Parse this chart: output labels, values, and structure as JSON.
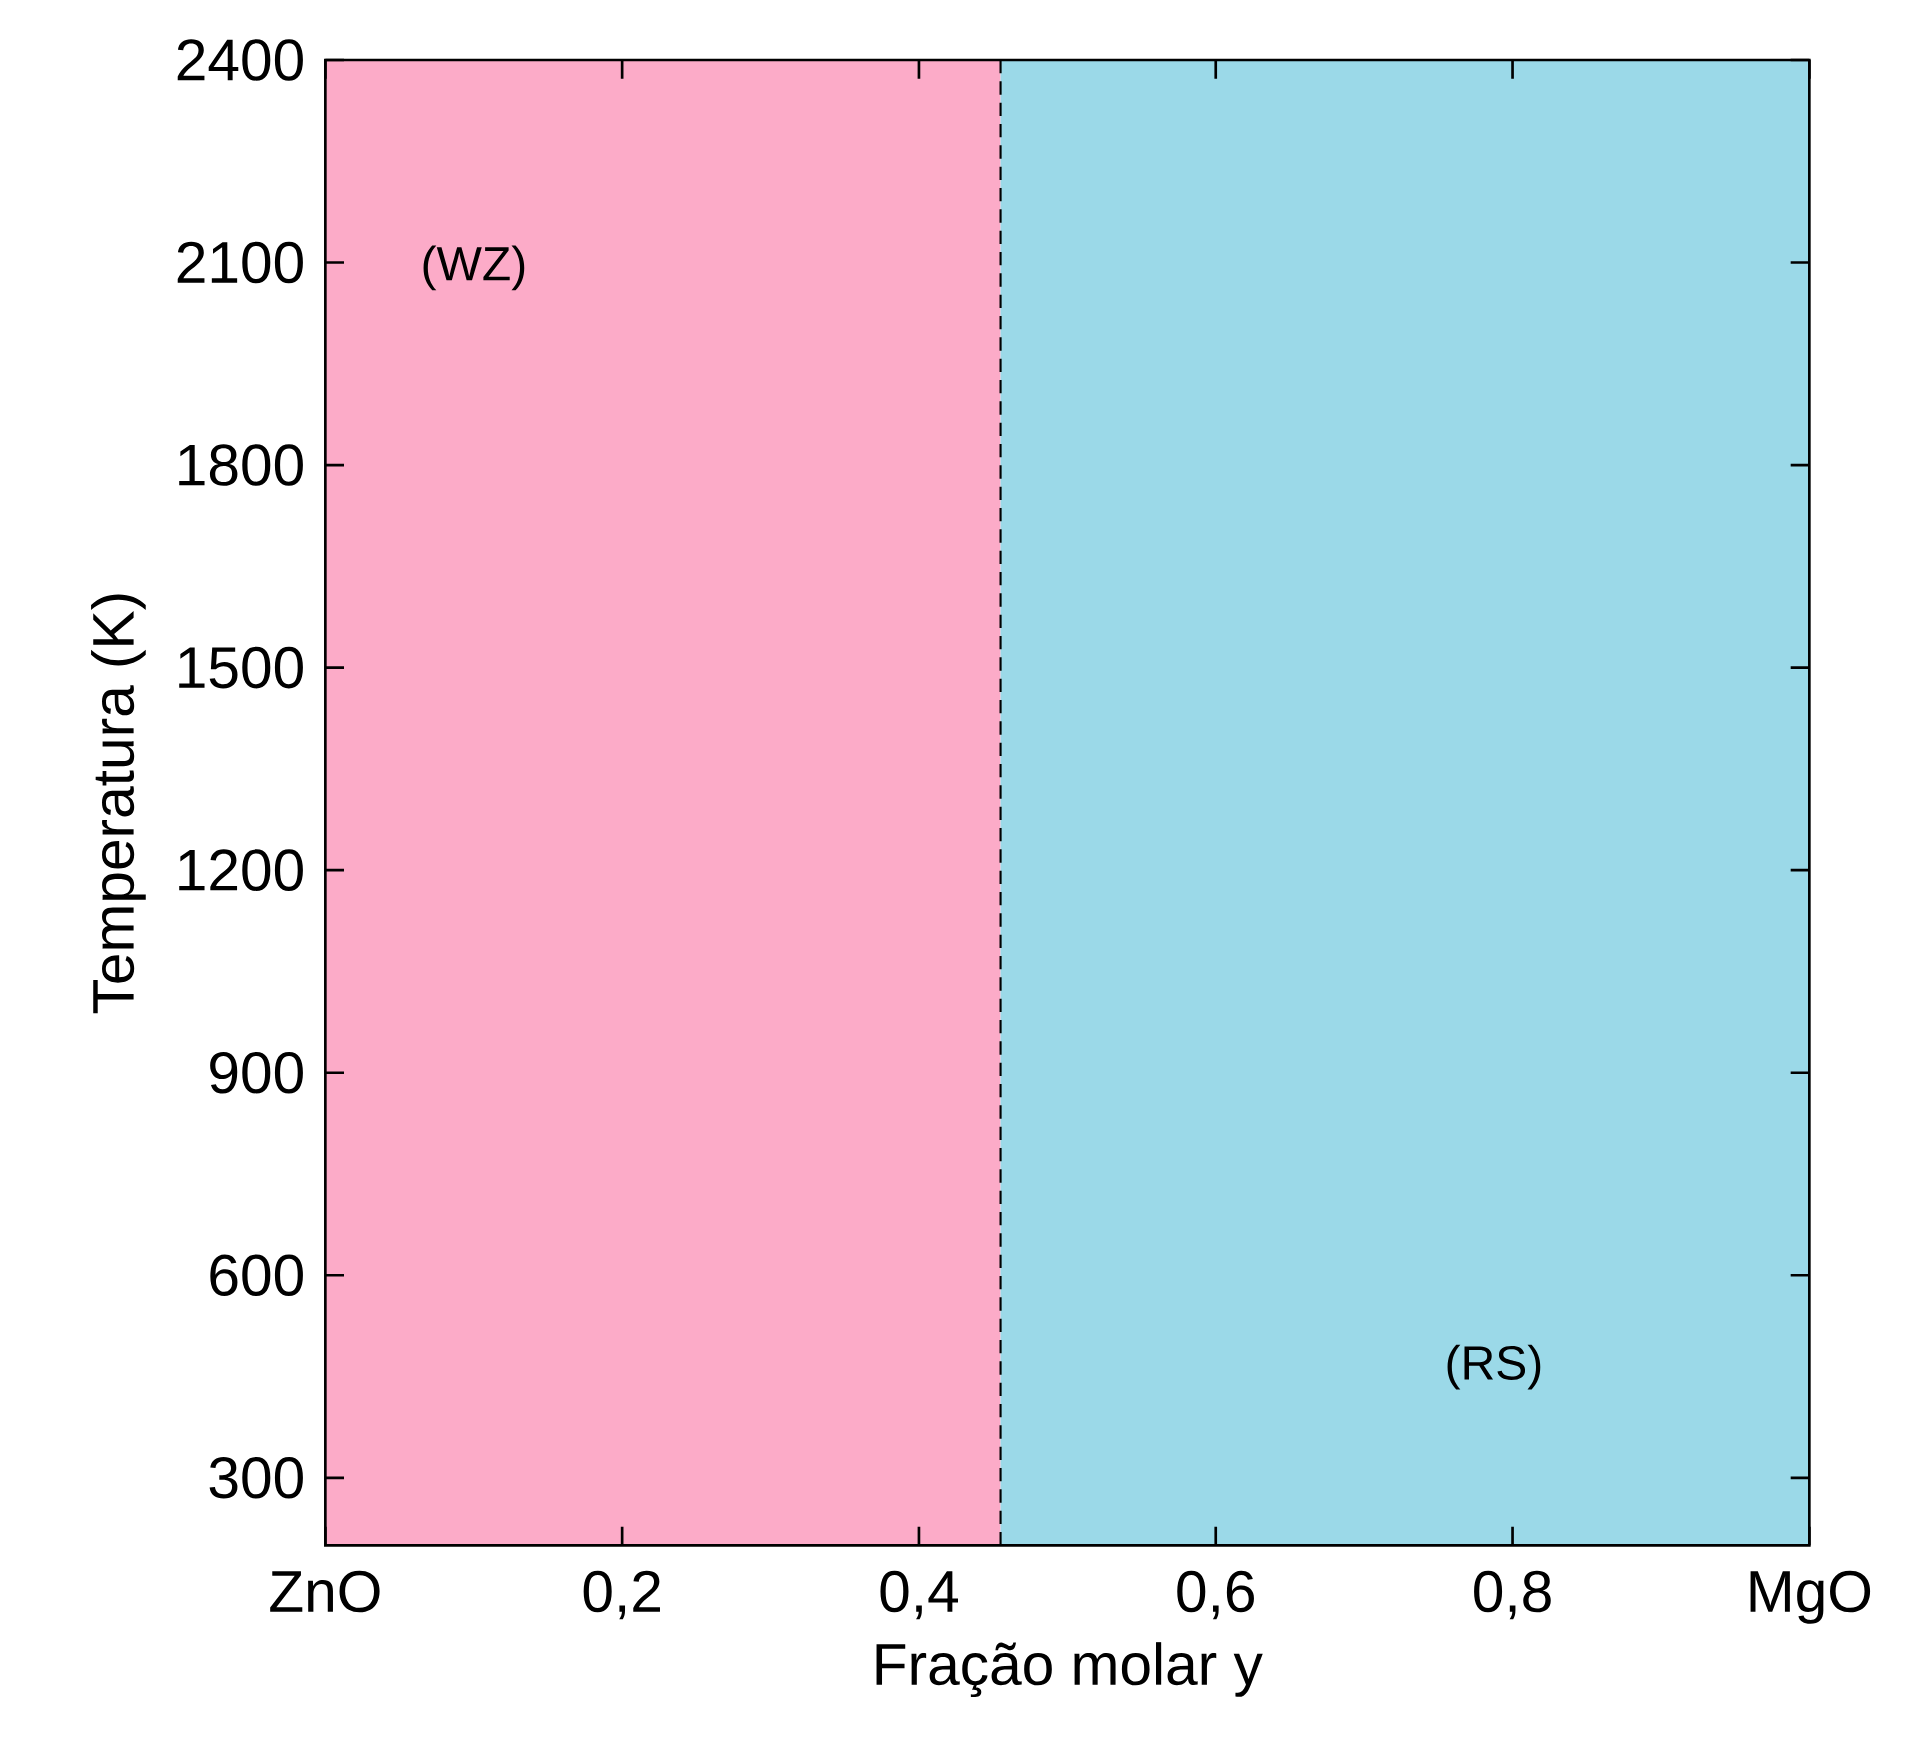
{
  "chart_data": {
    "type": "line",
    "xlabel": "Fração molar y",
    "ylabel": "Temperatura (K)",
    "xlim": [
      0,
      1
    ],
    "ylim": [
      200,
      2400
    ],
    "xticks": [
      {
        "value": 0,
        "label": "ZnO"
      },
      {
        "value": 0.2,
        "label": "0,2"
      },
      {
        "value": 0.4,
        "label": "0,4"
      },
      {
        "value": 0.6,
        "label": "0,6"
      },
      {
        "value": 0.8,
        "label": "0,8"
      },
      {
        "value": 1,
        "label": "MgO"
      }
    ],
    "yticks": [
      300,
      600,
      900,
      1200,
      1500,
      1800,
      2100,
      2400
    ],
    "bands": [
      {
        "axis": "x",
        "from": 0,
        "to": 0.455,
        "color": "#fcabc8",
        "label": "(WZ)"
      },
      {
        "axis": "x",
        "from": 0.455,
        "to": 1,
        "color": "#9bd9e8",
        "label": "(RS)"
      }
    ],
    "series": [
      {
        "x": [
          0.455,
          0.455
        ],
        "values": [
          200,
          2400
        ],
        "color": "#000000",
        "line_style": "dashed"
      }
    ],
    "grid": false,
    "marker": "none"
  }
}
